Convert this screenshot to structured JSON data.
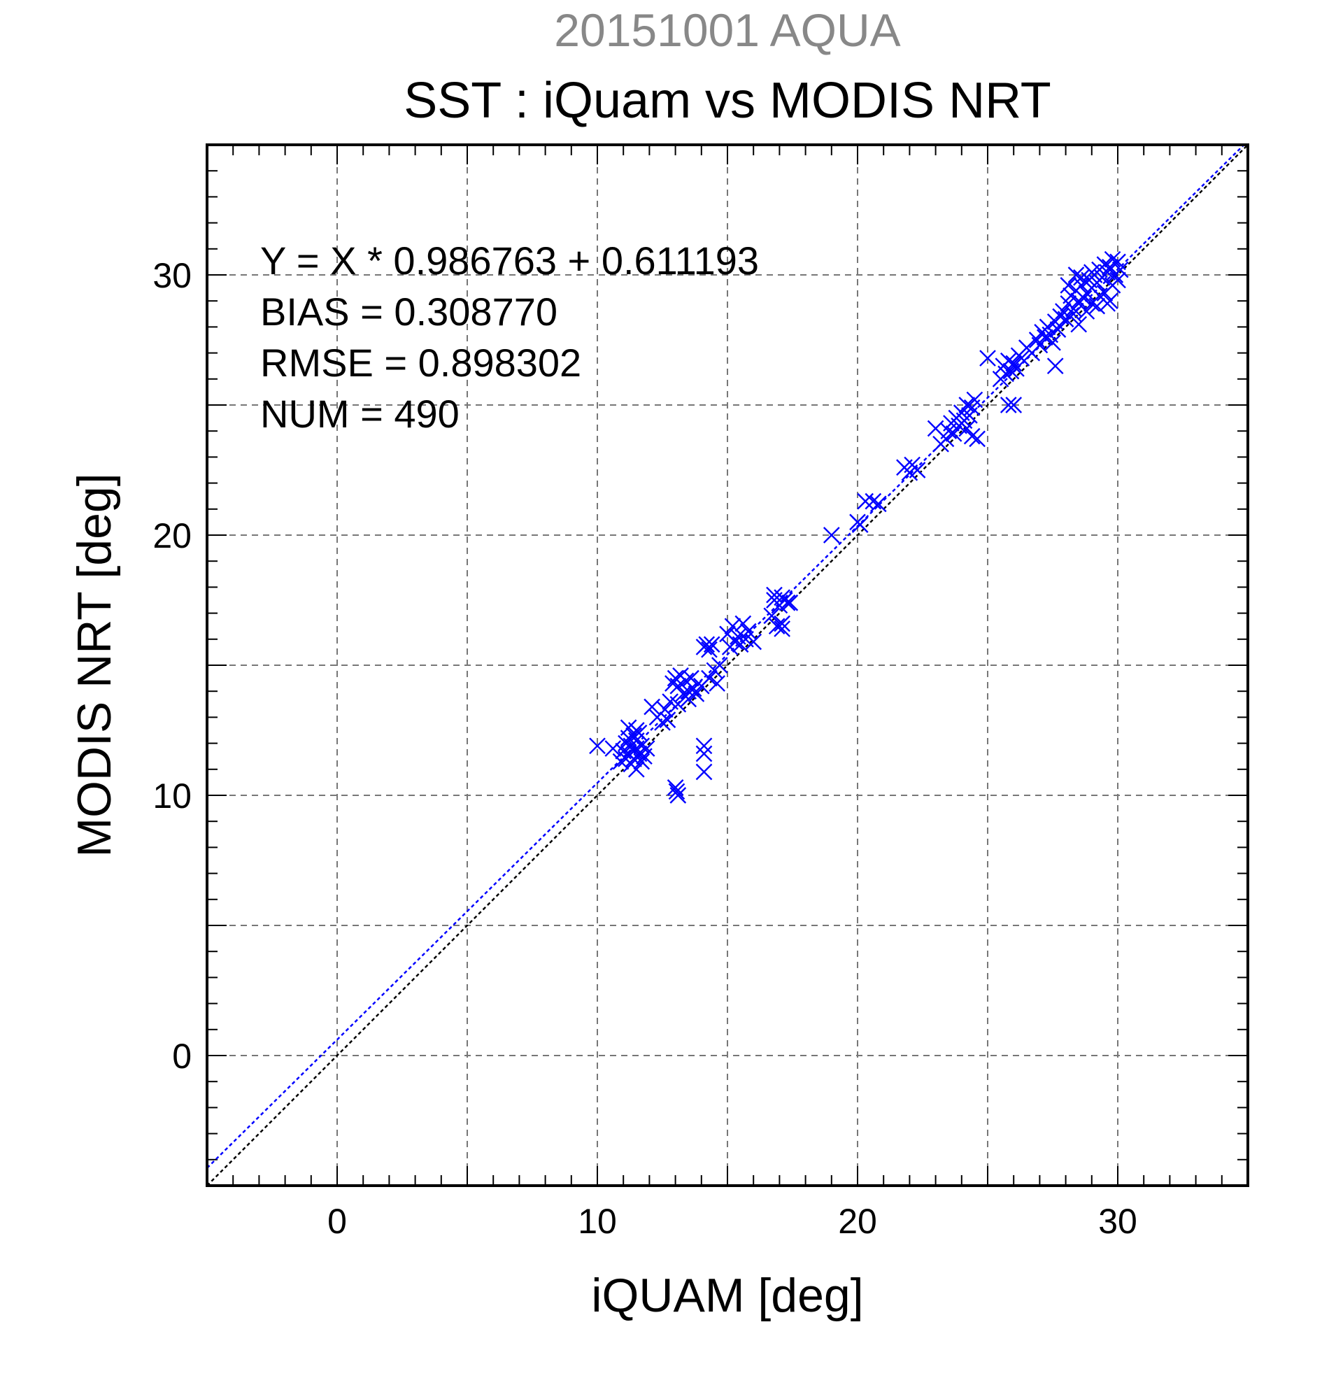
{
  "chart_data": {
    "type": "scatter",
    "subtitle": "20151001 AQUA",
    "title": "SST : iQuam vs MODIS NRT",
    "xlabel": "iQUAM [deg]",
    "ylabel": "MODIS NRT [deg]",
    "xlim": [
      -5,
      35
    ],
    "ylim": [
      -5,
      35
    ],
    "xticks": [
      0,
      10,
      20,
      30
    ],
    "yticks": [
      0,
      10,
      20,
      30
    ],
    "grid": true,
    "annotations": [
      "Y = X * 0.986763 + 0.611193",
      "BIAS = 0.308770",
      "RMSE = 0.898302",
      "NUM = 490"
    ],
    "marker": "x",
    "marker_color": "#0000ff",
    "regression_line": {
      "slope": 0.986763,
      "intercept": 0.611193,
      "color": "#0000ff",
      "style": "dotted"
    },
    "identity_line": {
      "slope": 1,
      "intercept": 0,
      "color": "#000000",
      "style": "dotted"
    },
    "points": [
      [
        10.0,
        11.9
      ],
      [
        10.6,
        11.8
      ],
      [
        10.9,
        11.3
      ],
      [
        11.0,
        11.7
      ],
      [
        11.1,
        12.0
      ],
      [
        11.1,
        11.4
      ],
      [
        11.2,
        12.2
      ],
      [
        11.2,
        11.6
      ],
      [
        11.3,
        11.9
      ],
      [
        11.3,
        11.2
      ],
      [
        11.4,
        12.3
      ],
      [
        11.4,
        11.7
      ],
      [
        11.4,
        11.4
      ],
      [
        11.5,
        12.1
      ],
      [
        11.5,
        11.8
      ],
      [
        11.5,
        11.0
      ],
      [
        11.6,
        11.6
      ],
      [
        11.6,
        12.4
      ],
      [
        11.7,
        11.3
      ],
      [
        11.7,
        11.9
      ],
      [
        11.8,
        11.5
      ],
      [
        11.9,
        11.8
      ],
      [
        11.5,
        12.5
      ],
      [
        11.2,
        12.6
      ],
      [
        12.1,
        13.4
      ],
      [
        12.3,
        13.0
      ],
      [
        12.5,
        12.8
      ],
      [
        12.6,
        13.3
      ],
      [
        12.7,
        12.9
      ],
      [
        12.8,
        13.6
      ],
      [
        12.9,
        14.3
      ],
      [
        13.0,
        14.5
      ],
      [
        13.1,
        13.5
      ],
      [
        13.1,
        14.2
      ],
      [
        13.2,
        14.6
      ],
      [
        13.3,
        13.9
      ],
      [
        13.4,
        14.4
      ],
      [
        13.5,
        14.0
      ],
      [
        13.5,
        13.7
      ],
      [
        13.6,
        14.5
      ],
      [
        13.7,
        14.1
      ],
      [
        13.8,
        13.9
      ],
      [
        13.0,
        10.3
      ],
      [
        13.1,
        10.0
      ],
      [
        13.05,
        10.15
      ],
      [
        14.1,
        11.9
      ],
      [
        14.1,
        11.6
      ],
      [
        14.1,
        10.9
      ],
      [
        14.0,
        14.2
      ],
      [
        14.1,
        15.7
      ],
      [
        14.2,
        15.8
      ],
      [
        14.3,
        15.6
      ],
      [
        14.4,
        15.8
      ],
      [
        14.3,
        14.5
      ],
      [
        14.5,
        14.8
      ],
      [
        14.6,
        14.3
      ],
      [
        14.7,
        15.0
      ],
      [
        15.0,
        16.2
      ],
      [
        15.1,
        15.7
      ],
      [
        15.2,
        16.5
      ],
      [
        15.3,
        15.9
      ],
      [
        15.4,
        16.1
      ],
      [
        15.5,
        15.8
      ],
      [
        15.6,
        16.6
      ],
      [
        15.7,
        16.0
      ],
      [
        15.8,
        16.3
      ],
      [
        16.0,
        15.9
      ],
      [
        16.7,
        16.9
      ],
      [
        16.8,
        17.5
      ],
      [
        16.8,
        17.7
      ],
      [
        16.9,
        16.5
      ],
      [
        17.0,
        17.3
      ],
      [
        17.1,
        16.6
      ],
      [
        17.1,
        17.6
      ],
      [
        17.2,
        17.5
      ],
      [
        17.3,
        17.4
      ],
      [
        17.4,
        17.4
      ],
      [
        17.1,
        16.4
      ],
      [
        19.0,
        20.0
      ],
      [
        20.0,
        20.5
      ],
      [
        20.1,
        20.4
      ],
      [
        20.3,
        21.3
      ],
      [
        20.6,
        21.3
      ],
      [
        20.8,
        21.2
      ],
      [
        21.8,
        22.6
      ],
      [
        22.0,
        22.4
      ],
      [
        22.1,
        22.7
      ],
      [
        22.3,
        22.5
      ],
      [
        23.0,
        24.1
      ],
      [
        23.2,
        23.5
      ],
      [
        23.4,
        23.7
      ],
      [
        23.5,
        24.0
      ],
      [
        23.6,
        24.3
      ],
      [
        23.7,
        23.9
      ],
      [
        23.8,
        24.5
      ],
      [
        23.9,
        24.2
      ],
      [
        24.0,
        24.7
      ],
      [
        24.1,
        24.4
      ],
      [
        24.2,
        25.0
      ],
      [
        24.3,
        24.6
      ],
      [
        24.4,
        24.9
      ],
      [
        24.5,
        25.2
      ],
      [
        24.4,
        23.8
      ],
      [
        24.6,
        23.7
      ],
      [
        24.2,
        24.1
      ],
      [
        25.0,
        26.8
      ],
      [
        25.5,
        26.0
      ],
      [
        25.6,
        26.5
      ],
      [
        25.7,
        26.2
      ],
      [
        25.8,
        26.7
      ],
      [
        25.9,
        26.3
      ],
      [
        26.0,
        26.6
      ],
      [
        26.1,
        26.4
      ],
      [
        26.2,
        26.9
      ],
      [
        25.8,
        25.0
      ],
      [
        26.0,
        25.0
      ],
      [
        26.3,
        26.8
      ],
      [
        26.5,
        27.2
      ],
      [
        26.7,
        27.0
      ],
      [
        26.9,
        27.5
      ],
      [
        27.0,
        27.3
      ],
      [
        27.1,
        27.8
      ],
      [
        27.2,
        27.6
      ],
      [
        27.3,
        28.0
      ],
      [
        27.4,
        27.7
      ],
      [
        27.6,
        28.2
      ],
      [
        27.7,
        27.9
      ],
      [
        27.8,
        28.4
      ],
      [
        27.9,
        28.6
      ],
      [
        28.0,
        28.3
      ],
      [
        27.5,
        27.4
      ],
      [
        27.6,
        26.5
      ],
      [
        28.1,
        28.9
      ],
      [
        28.2,
        29.2
      ],
      [
        28.3,
        28.7
      ],
      [
        28.4,
        29.4
      ],
      [
        28.5,
        29.0
      ],
      [
        28.6,
        29.6
      ],
      [
        28.7,
        29.1
      ],
      [
        28.8,
        29.3
      ],
      [
        28.9,
        29.8
      ],
      [
        29.0,
        29.5
      ],
      [
        29.1,
        30.0
      ],
      [
        29.2,
        29.7
      ],
      [
        29.3,
        30.2
      ],
      [
        29.4,
        29.9
      ],
      [
        29.5,
        30.4
      ],
      [
        29.6,
        30.1
      ],
      [
        29.7,
        30.3
      ],
      [
        29.8,
        30.6
      ],
      [
        29.9,
        30.0
      ],
      [
        30.0,
        30.5
      ],
      [
        30.1,
        30.2
      ],
      [
        28.3,
        28.5
      ],
      [
        28.5,
        28.1
      ],
      [
        28.8,
        28.6
      ],
      [
        29.0,
        28.9
      ],
      [
        29.2,
        28.8
      ],
      [
        29.5,
        29.3
      ],
      [
        29.7,
        29.0
      ],
      [
        28.1,
        29.6
      ],
      [
        28.4,
        30.0
      ],
      [
        28.6,
        29.9
      ],
      [
        29.0,
        30.1
      ],
      [
        29.3,
        29.2
      ],
      [
        29.8,
        29.6
      ],
      [
        30.0,
        29.8
      ],
      [
        29.6,
        28.9
      ]
    ]
  }
}
